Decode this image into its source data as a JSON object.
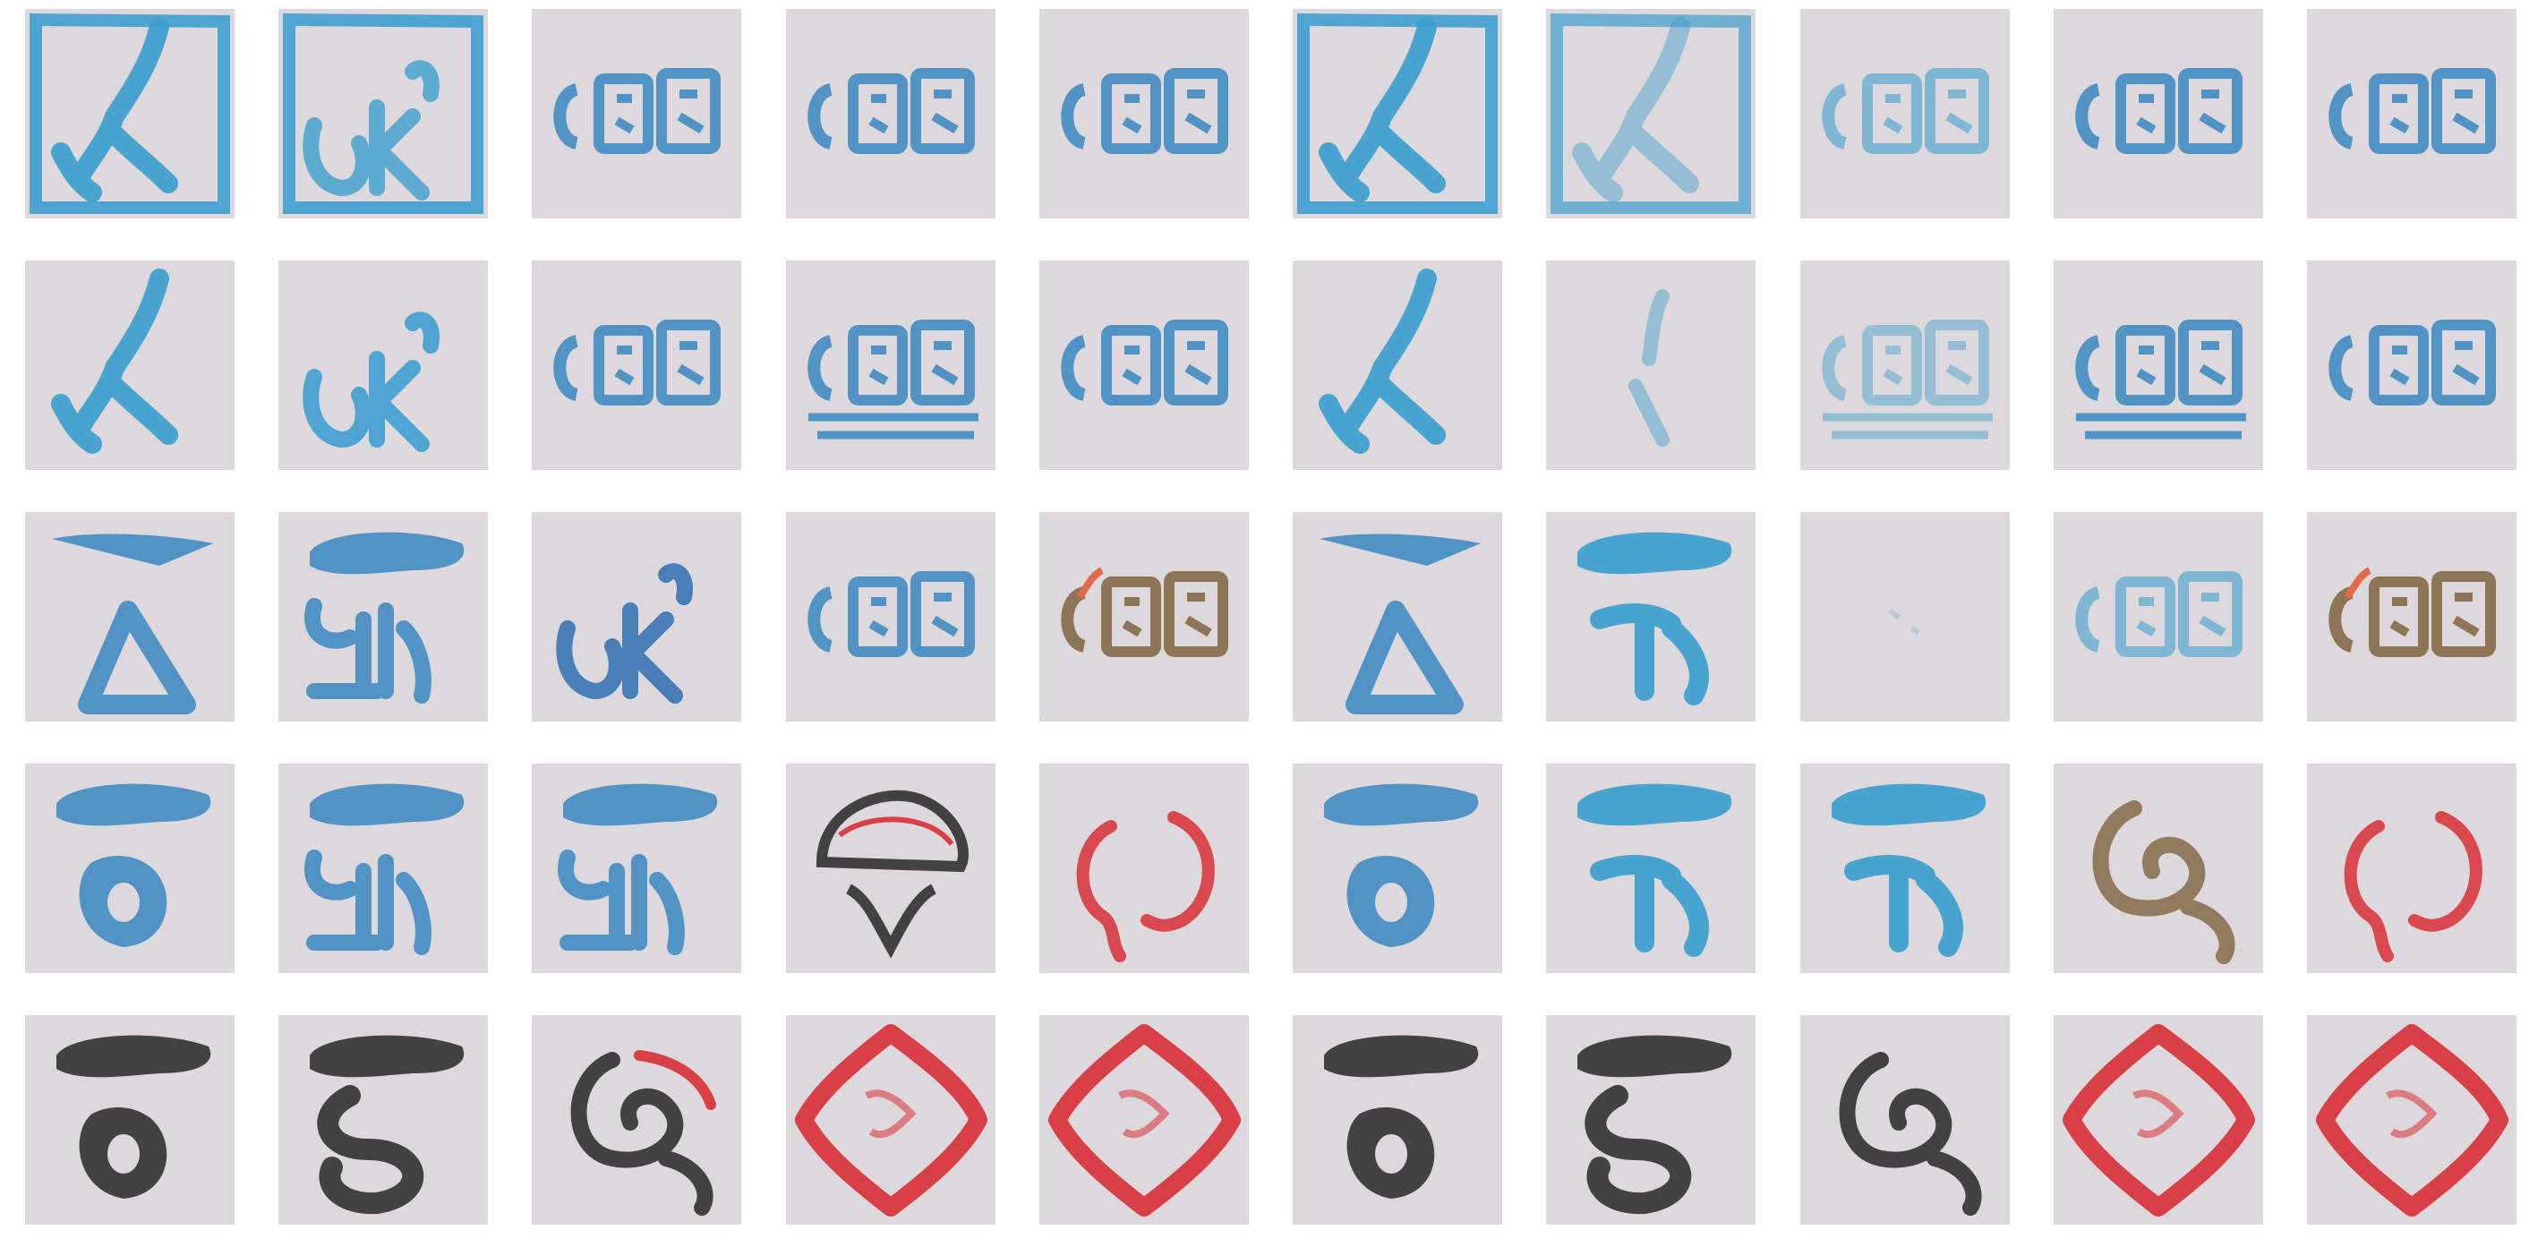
{
  "grid": {
    "rows": 5,
    "columns": 10,
    "tile_background": "#dcd8db",
    "page_background": "#ffffff",
    "tiles": [
      [
        "glyph-k-frame",
        "glyph-ok-frame",
        "glyph-seal-3char",
        "glyph-seal-3char",
        "glyph-seal-3char",
        "glyph-k-frame",
        "glyph-k-frame-faint",
        "glyph-seal-3char-faint",
        "glyph-seal-3char",
        "glyph-seal-3char"
      ],
      [
        "glyph-k",
        "glyph-ok",
        "glyph-seal-3char",
        "glyph-seal-lined",
        "glyph-seal-3char",
        "glyph-k",
        "glyph-i-faint",
        "glyph-seal-faint",
        "glyph-seal-lined",
        "glyph-seal-3char"
      ],
      [
        "glyph-triangle",
        "glyph-cloud-pedestal",
        "glyph-ck",
        "glyph-seal-3char",
        "glyph-seal-brown",
        "glyph-triangle",
        "glyph-cloud-h",
        "glyph-blank",
        "glyph-seal-3char-faint",
        "glyph-seal-brown"
      ],
      [
        "glyph-cloud-o",
        "glyph-cloud-pedestal",
        "glyph-cloud-pedestal",
        "glyph-mushroom-dark",
        "glyph-brackets-red",
        "glyph-cloud-o",
        "glyph-cloud-h",
        "glyph-cloud-h",
        "glyph-swirl-dark",
        "glyph-brackets-red"
      ],
      [
        "glyph-cloud-o-black",
        "glyph-cloud-s-black",
        "glyph-swirl-black-red",
        "glyph-diamond-red",
        "glyph-diamond-red",
        "glyph-cloud-o-black",
        "glyph-cloud-s-black",
        "glyph-swirl-black",
        "glyph-diamond-red",
        "glyph-diamond-red"
      ]
    ],
    "colors": [
      "#3fa0cf",
      "#4a8fc4",
      "#2f6fb0",
      "#3a3a3a",
      "#d8373f",
      "#8a7050",
      "#e06a4a"
    ]
  }
}
